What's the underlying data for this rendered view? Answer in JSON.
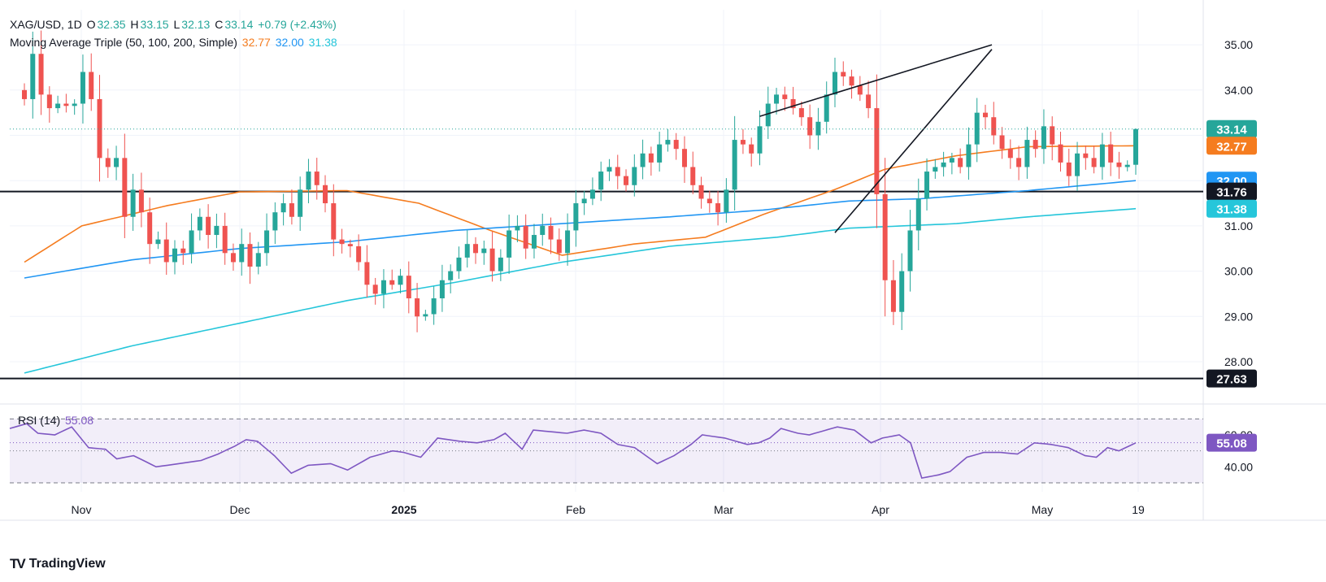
{
  "header": {
    "symbol": "XAG/USD, 1D",
    "ohlc": [
      {
        "k": "O",
        "v": "32.35"
      },
      {
        "k": "H",
        "v": "33.15"
      },
      {
        "k": "L",
        "v": "32.13"
      },
      {
        "k": "C",
        "v": "33.14"
      }
    ],
    "change": "+0.79 (+2.43%)",
    "ma_label": "Moving Average Triple (50, 100, 200, Simple)",
    "ma_values": [
      "32.77",
      "32.00",
      "31.38"
    ]
  },
  "rsi": {
    "label": "RSI (14)",
    "value": "55.08",
    "current": 55.08,
    "levels": [
      70,
      50,
      30
    ],
    "ticks": [
      "60.00",
      "40.00"
    ]
  },
  "footer": {
    "brand": "TradingView",
    "logo": "TV"
  },
  "colors": {
    "up": "#26a69a",
    "down": "#ef5350",
    "ma50": "#f57c1f",
    "ma100": "#2196f3",
    "ma200": "#26c6da",
    "rsi": "#7e57c2",
    "text": "#131722",
    "close_line": "#26a69a"
  },
  "chart_data": {
    "type": "candlestick",
    "title": "XAG/USD, 1D",
    "y_axis": {
      "ticks": [
        "35.00",
        "34.00",
        "33.00",
        "32.00",
        "31.00",
        "30.00",
        "29.00",
        "28.00"
      ],
      "ylim": [
        27.3,
        35.3
      ]
    },
    "x_axis": {
      "labels": [
        "Nov",
        "Dec",
        "2025",
        "Feb",
        "Mar",
        "Apr",
        "May",
        "19"
      ]
    },
    "price_labels": [
      {
        "text": "33.14",
        "value": 33.14,
        "color": "#26a69a"
      },
      {
        "text": "32.77",
        "value": 32.77,
        "color": "#f57c1f"
      },
      {
        "text": "32.00",
        "value": 32.0,
        "color": "#2196f3"
      },
      {
        "text": "31.76",
        "value": 31.76,
        "color": "#131722"
      },
      {
        "text": "31.38",
        "value": 31.38,
        "color": "#26c6da"
      },
      {
        "text": "27.63",
        "value": 27.63,
        "color": "#131722"
      }
    ],
    "horizontal_lines": [
      31.76,
      27.63
    ],
    "last_close": 33.14,
    "closes": [
      33.8,
      34.8,
      33.9,
      33.6,
      33.7,
      33.65,
      33.7,
      34.4,
      33.8,
      32.5,
      32.3,
      32.5,
      31.2,
      31.8,
      31.3,
      30.6,
      30.7,
      30.2,
      30.5,
      30.4,
      30.9,
      31.2,
      30.8,
      31.0,
      30.4,
      30.2,
      30.6,
      30.1,
      30.4,
      30.9,
      31.3,
      31.5,
      31.2,
      31.8,
      32.2,
      31.9,
      31.5,
      30.7,
      30.6,
      30.55,
      30.2,
      29.7,
      29.5,
      29.8,
      29.7,
      29.9,
      29.4,
      29.0,
      29.05,
      29.4,
      29.8,
      30.0,
      30.3,
      30.6,
      30.4,
      30.5,
      30.0,
      30.3,
      30.9,
      31.0,
      30.5,
      30.8,
      31.0,
      30.7,
      30.4,
      30.9,
      31.5,
      31.6,
      31.8,
      32.2,
      32.3,
      32.1,
      31.9,
      32.3,
      32.6,
      32.4,
      32.8,
      32.9,
      32.7,
      32.3,
      31.9,
      31.6,
      31.5,
      31.3,
      31.8,
      32.9,
      32.8,
      32.6,
      33.2,
      33.7,
      33.9,
      33.8,
      33.6,
      33.4,
      33.0,
      33.3,
      33.9,
      34.4,
      34.3,
      34.1,
      33.9,
      33.6,
      31.7,
      29.8,
      29.1,
      30.0,
      30.9,
      31.6,
      32.2,
      32.3,
      32.4,
      32.5,
      32.3,
      32.8,
      33.5,
      33.4,
      33.0,
      32.7,
      32.5,
      32.3,
      32.9,
      32.7,
      33.2,
      32.8,
      32.4,
      32.1,
      32.6,
      32.5,
      32.3,
      32.8,
      32.4,
      32.3,
      32.35,
      33.14
    ],
    "ma_series": [
      {
        "name": "50",
        "value_label": "32.77",
        "color": "#f57c1f",
        "anchors": [
          [
            0,
            30.2
          ],
          [
            8,
            31.0
          ],
          [
            20,
            31.45
          ],
          [
            30,
            31.75
          ],
          [
            45,
            31.78
          ],
          [
            55,
            31.5
          ],
          [
            65,
            30.9
          ],
          [
            75,
            30.35
          ],
          [
            85,
            30.6
          ],
          [
            95,
            30.75
          ],
          [
            103,
            31.25
          ],
          [
            113,
            31.8
          ],
          [
            120,
            32.25
          ],
          [
            130,
            32.55
          ],
          [
            140,
            32.75
          ],
          [
            155,
            32.77
          ]
        ]
      },
      {
        "name": "100",
        "value_label": "32.00",
        "color": "#2196f3",
        "anchors": [
          [
            0,
            29.85
          ],
          [
            15,
            30.25
          ],
          [
            30,
            30.5
          ],
          [
            45,
            30.65
          ],
          [
            60,
            30.9
          ],
          [
            75,
            31.05
          ],
          [
            90,
            31.2
          ],
          [
            103,
            31.35
          ],
          [
            115,
            31.55
          ],
          [
            125,
            31.6
          ],
          [
            140,
            31.78
          ],
          [
            155,
            32.0
          ]
        ]
      },
      {
        "name": "200",
        "value_label": "31.38",
        "color": "#26c6da",
        "anchors": [
          [
            0,
            27.75
          ],
          [
            15,
            28.35
          ],
          [
            30,
            28.85
          ],
          [
            45,
            29.35
          ],
          [
            60,
            29.75
          ],
          [
            75,
            30.2
          ],
          [
            90,
            30.55
          ],
          [
            105,
            30.75
          ],
          [
            115,
            30.95
          ],
          [
            130,
            31.05
          ],
          [
            140,
            31.2
          ],
          [
            155,
            31.38
          ]
        ]
      }
    ],
    "rsi_anchors": [
      [
        0,
        64
      ],
      [
        3,
        67
      ],
      [
        5,
        61
      ],
      [
        8,
        60
      ],
      [
        11,
        65
      ],
      [
        14,
        52
      ],
      [
        17,
        51
      ],
      [
        19,
        45
      ],
      [
        22,
        47
      ],
      [
        26,
        40
      ],
      [
        30,
        42
      ],
      [
        34,
        44
      ],
      [
        37,
        48
      ],
      [
        40,
        53
      ],
      [
        42,
        57
      ],
      [
        44,
        56
      ],
      [
        47,
        47
      ],
      [
        50,
        36
      ],
      [
        53,
        41
      ],
      [
        57,
        42
      ],
      [
        60,
        38
      ],
      [
        64,
        46
      ],
      [
        68,
        50
      ],
      [
        70,
        49
      ],
      [
        73,
        46
      ],
      [
        76,
        58
      ],
      [
        80,
        56
      ],
      [
        83,
        55
      ],
      [
        86,
        57
      ],
      [
        88,
        61
      ],
      [
        91,
        51
      ],
      [
        93,
        63
      ],
      [
        96,
        62
      ],
      [
        99,
        61
      ],
      [
        102,
        63
      ],
      [
        105,
        61
      ],
      [
        108,
        54
      ],
      [
        111,
        52
      ],
      [
        115,
        42
      ],
      [
        118,
        47
      ],
      [
        121,
        54
      ],
      [
        123,
        60
      ],
      [
        127,
        58
      ],
      [
        131,
        54
      ],
      [
        133,
        55
      ],
      [
        135,
        58
      ],
      [
        137,
        64
      ],
      [
        140,
        61
      ],
      [
        142,
        60
      ],
      [
        144,
        62
      ],
      [
        147,
        65
      ],
      [
        150,
        63
      ],
      [
        153,
        55
      ],
      [
        155,
        58
      ],
      [
        158,
        60
      ],
      [
        160,
        55
      ],
      [
        162,
        33
      ],
      [
        165,
        35
      ],
      [
        167,
        37
      ],
      [
        170,
        46
      ],
      [
        173,
        49
      ],
      [
        176,
        49
      ],
      [
        179,
        48
      ],
      [
        182,
        55
      ],
      [
        185,
        54
      ],
      [
        188,
        52
      ],
      [
        191,
        47
      ],
      [
        193,
        46
      ],
      [
        195,
        52
      ],
      [
        197,
        50
      ],
      [
        200,
        55
      ]
    ]
  }
}
